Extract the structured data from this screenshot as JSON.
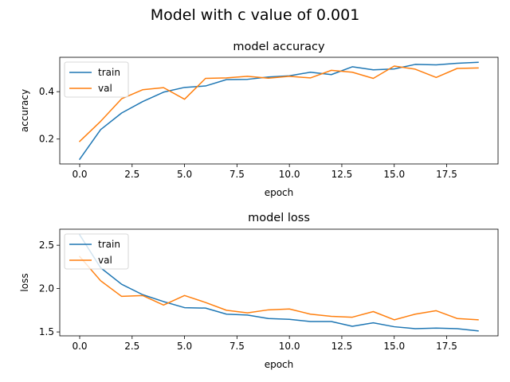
{
  "figure": {
    "title": "Model with c value of 0.001"
  },
  "colors": {
    "train": "#1f77b4",
    "val": "#ff7f0e"
  },
  "chart_data": [
    {
      "type": "line",
      "title": "model accuracy",
      "xlabel": "epoch",
      "ylabel": "accuracy",
      "xlim": [
        -0.95,
        19.95
      ],
      "ylim": [
        0.095,
        0.545
      ],
      "xticks": [
        0.0,
        2.5,
        5.0,
        7.5,
        10.0,
        12.5,
        15.0,
        17.5
      ],
      "xtick_labels": [
        "0.0",
        "2.5",
        "5.0",
        "7.5",
        "10.0",
        "12.5",
        "15.0",
        "17.5"
      ],
      "yticks": [
        0.2,
        0.4
      ],
      "ytick_labels": [
        "0.2",
        "0.4"
      ],
      "legend": "top-left",
      "grid": false,
      "x": [
        0,
        1,
        2,
        3,
        4,
        5,
        6,
        7,
        8,
        9,
        10,
        11,
        12,
        13,
        14,
        15,
        16,
        17,
        18,
        19
      ],
      "series": [
        {
          "name": "train",
          "values": [
            0.115,
            0.24,
            0.31,
            0.358,
            0.398,
            0.418,
            0.424,
            0.451,
            0.452,
            0.462,
            0.467,
            0.482,
            0.472,
            0.505,
            0.492,
            0.496,
            0.515,
            0.513,
            0.52,
            0.524
          ]
        },
        {
          "name": "val",
          "values": [
            0.19,
            0.275,
            0.37,
            0.408,
            0.417,
            0.368,
            0.456,
            0.458,
            0.465,
            0.457,
            0.465,
            0.458,
            0.49,
            0.482,
            0.456,
            0.508,
            0.495,
            0.46,
            0.498,
            0.5
          ]
        }
      ]
    },
    {
      "type": "line",
      "title": "model loss",
      "xlabel": "epoch",
      "ylabel": "loss",
      "xlim": [
        -0.95,
        19.95
      ],
      "ylim": [
        1.455,
        2.685
      ],
      "xticks": [
        0.0,
        2.5,
        5.0,
        7.5,
        10.0,
        12.5,
        15.0,
        17.5
      ],
      "xtick_labels": [
        "0.0",
        "2.5",
        "5.0",
        "7.5",
        "10.0",
        "12.5",
        "15.0",
        "17.5"
      ],
      "yticks": [
        1.5,
        2.0,
        2.5
      ],
      "ytick_labels": [
        "1.5",
        "2.0",
        "2.5"
      ],
      "legend": "top-left",
      "grid": false,
      "x": [
        0,
        1,
        2,
        3,
        4,
        5,
        6,
        7,
        8,
        9,
        10,
        11,
        12,
        13,
        14,
        15,
        16,
        17,
        18,
        19
      ],
      "series": [
        {
          "name": "train",
          "values": [
            2.62,
            2.24,
            2.05,
            1.93,
            1.85,
            1.78,
            1.775,
            1.705,
            1.695,
            1.655,
            1.645,
            1.62,
            1.62,
            1.565,
            1.605,
            1.56,
            1.538,
            1.545,
            1.538,
            1.512
          ]
        },
        {
          "name": "val",
          "values": [
            2.37,
            2.09,
            1.91,
            1.92,
            1.81,
            1.92,
            1.84,
            1.75,
            1.72,
            1.755,
            1.765,
            1.705,
            1.68,
            1.67,
            1.735,
            1.64,
            1.705,
            1.745,
            1.655,
            1.64
          ]
        }
      ]
    }
  ]
}
